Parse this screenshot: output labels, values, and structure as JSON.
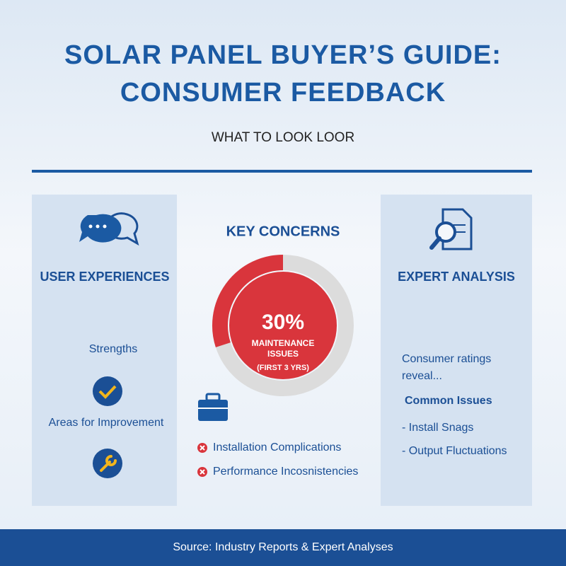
{
  "header": {
    "title_lines": [
      "SOLAR PANEL BUYER’S GUIDE:",
      "CONSUMER FEEDBACK"
    ],
    "subtitle": "WHAT TO LOOK LOOR"
  },
  "left_panel": {
    "heading": "USER EXPERIENCES",
    "items": [
      "Strengths",
      "Areas for Improvement"
    ]
  },
  "center": {
    "heading": "KEY CONCERNS",
    "share": {
      "value": 30,
      "label": "30%",
      "caption_lines": [
        "MAINTENANCE",
        "ISSUES",
        "(FIRST 3 YRS)"
      ]
    },
    "concerns": [
      "Installation Complications",
      "Performance Incosnistencies"
    ]
  },
  "right_panel": {
    "heading": "EXPERT ANALYSIS",
    "summary_lines": [
      "Consumer ratings",
      "reveal..."
    ],
    "subheading": "Common Issues",
    "issues": [
      "- Install Snags",
      "- Output Fluctuations"
    ]
  },
  "footer": {
    "source": "Source: Industry Reports & Expert Analyses"
  }
}
